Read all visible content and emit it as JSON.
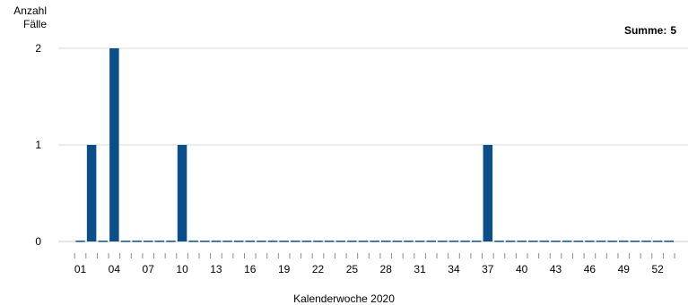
{
  "chart_data": {
    "type": "bar",
    "title": "",
    "ylabel": [
      "Anzahl",
      "Fälle"
    ],
    "xlabel": "Kalenderwoche 2020",
    "summary": {
      "label": "Summe:",
      "value": "5"
    },
    "ylim": [
      0,
      2
    ],
    "yticks": [
      "0",
      "1",
      "2"
    ],
    "grid": true,
    "legend": "none",
    "bar_color": "#0b4f8a",
    "x_tick_labels": [
      "01",
      "04",
      "07",
      "10",
      "13",
      "16",
      "19",
      "22",
      "25",
      "28",
      "31",
      "34",
      "37",
      "40",
      "43",
      "46",
      "49",
      "52"
    ],
    "categories": [
      "01",
      "02",
      "03",
      "04",
      "05",
      "06",
      "07",
      "08",
      "09",
      "10",
      "11",
      "12",
      "13",
      "14",
      "15",
      "16",
      "17",
      "18",
      "19",
      "20",
      "21",
      "22",
      "23",
      "24",
      "25",
      "26",
      "27",
      "28",
      "29",
      "30",
      "31",
      "32",
      "33",
      "34",
      "35",
      "36",
      "37",
      "38",
      "39",
      "40",
      "41",
      "42",
      "43",
      "44",
      "45",
      "46",
      "47",
      "48",
      "49",
      "50",
      "51",
      "52",
      "53"
    ],
    "values": [
      0,
      1,
      0,
      2,
      0,
      0,
      0,
      0,
      0,
      1,
      0,
      0,
      0,
      0,
      0,
      0,
      0,
      0,
      0,
      0,
      0,
      0,
      0,
      0,
      0,
      0,
      0,
      0,
      0,
      0,
      0,
      0,
      0,
      0,
      0,
      0,
      1,
      0,
      0,
      0,
      0,
      0,
      0,
      0,
      0,
      0,
      0,
      0,
      0,
      0,
      0,
      0,
      0
    ]
  }
}
